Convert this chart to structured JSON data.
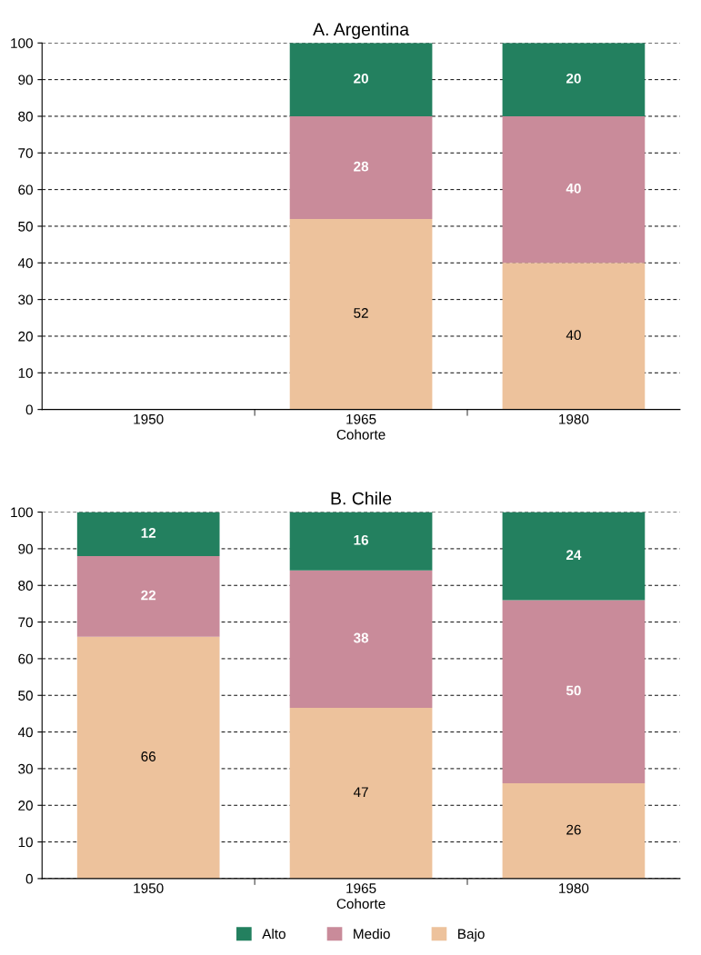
{
  "chart_data": [
    {
      "type": "bar",
      "title": "A. Argentina",
      "xlabel": "Cohorte",
      "categories": [
        "1950",
        "1965",
        "1980"
      ],
      "stacked": true,
      "ylim": [
        0,
        100
      ],
      "yticks": [
        0,
        10,
        20,
        30,
        40,
        50,
        60,
        70,
        80,
        90,
        100
      ],
      "grid": "y",
      "data_labels": true,
      "series": [
        {
          "color": "#edc29c",
          "values": [
            null,
            52,
            40
          ]
        },
        {
          "color": "#c98b9a",
          "values": [
            null,
            28,
            40
          ]
        },
        {
          "color": "#23805f",
          "values": [
            null,
            20,
            20
          ]
        }
      ]
    },
    {
      "type": "bar",
      "title": "B. Chile",
      "xlabel": "Cohorte",
      "categories": [
        "1950",
        "1965",
        "1980"
      ],
      "stacked": true,
      "ylim": [
        0,
        100
      ],
      "yticks": [
        0,
        10,
        20,
        30,
        40,
        50,
        60,
        70,
        80,
        90,
        100
      ],
      "grid": "y",
      "legend": "bottom",
      "series": [
        {
          "name": "Bajo",
          "color": "#edc29c",
          "values": [
            66,
            46.6,
            26
          ],
          "value_labels": [
            "66",
            "47",
            "26"
          ]
        },
        {
          "name": "Medio",
          "color": "#c98b9a",
          "values": [
            22,
            37.5,
            50
          ],
          "value_labels": [
            "22",
            "38",
            "50"
          ]
        },
        {
          "name": "Alto",
          "color": "#23805f",
          "values": [
            12,
            15.9,
            24
          ],
          "value_labels": [
            "12",
            "16",
            "24"
          ]
        }
      ]
    }
  ]
}
